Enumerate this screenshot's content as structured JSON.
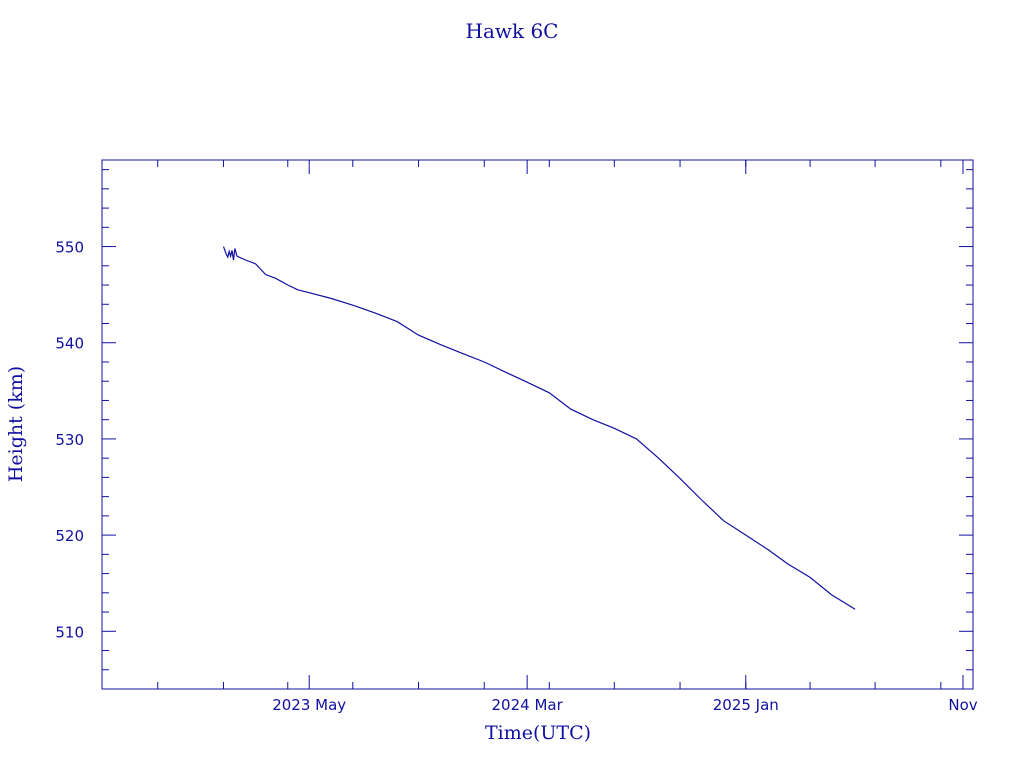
{
  "chart_data": {
    "type": "line",
    "title": "Hawk 6C",
    "xlabel": "Time(UTC)",
    "ylabel": "Height (km)",
    "ylim": [
      504,
      559
    ],
    "xlim": [
      "2022-07-15",
      "2025-11-15"
    ],
    "grid": false,
    "x_ticks": [
      {
        "label": "2023 May",
        "date": "2023-05-01"
      },
      {
        "label": "2024 Mar",
        "date": "2024-03-01"
      },
      {
        "label": "2025 Jan",
        "date": "2025-01-01"
      },
      {
        "label": "Nov",
        "date": "2025-11-01"
      }
    ],
    "y_ticks": [
      510,
      520,
      530,
      540,
      550
    ],
    "color": "#1010a0",
    "series": [
      {
        "x": [
          "2023-01-01",
          "2023-01-05",
          "2023-01-07",
          "2023-01-09",
          "2023-01-11",
          "2023-01-13",
          "2023-01-15",
          "2023-01-17",
          "2023-01-20",
          "2023-02-01",
          "2023-02-15",
          "2023-03-01",
          "2023-03-15",
          "2023-04-01",
          "2023-04-15",
          "2023-05-01",
          "2023-06-01",
          "2023-07-01",
          "2023-08-01",
          "2023-09-01",
          "2023-10-01",
          "2023-11-01",
          "2023-12-01",
          "2024-01-01",
          "2024-02-01",
          "2024-03-01",
          "2024-04-01",
          "2024-05-01",
          "2024-06-01",
          "2024-07-01",
          "2024-08-01",
          "2024-09-01",
          "2024-10-01",
          "2024-11-01",
          "2024-12-01",
          "2025-01-01",
          "2025-02-01",
          "2025-03-01",
          "2025-04-01",
          "2025-05-01",
          "2025-06-03"
        ],
        "y": [
          550.0,
          549.2,
          548.9,
          549.5,
          549.0,
          549.6,
          548.6,
          549.8,
          549.0,
          548.6,
          548.2,
          547.1,
          546.7,
          546.0,
          545.5,
          545.2,
          544.6,
          543.9,
          543.1,
          542.2,
          540.8,
          539.8,
          538.9,
          538.0,
          536.9,
          535.9,
          534.8,
          533.1,
          532.0,
          531.1,
          530.0,
          528.0,
          525.9,
          523.6,
          521.5,
          520.0,
          518.5,
          517.0,
          515.6,
          513.8,
          512.3
        ]
      }
    ]
  }
}
